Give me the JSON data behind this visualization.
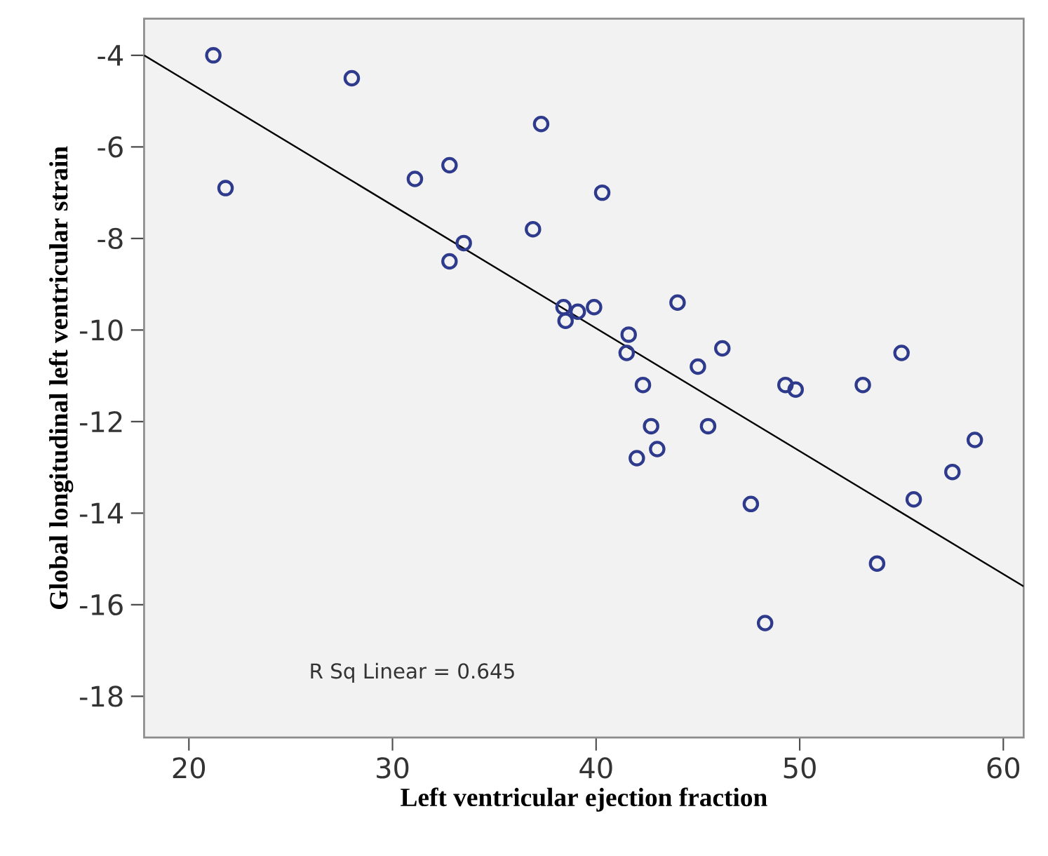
{
  "chart_data": {
    "type": "scatter",
    "xlabel": "Left ventricular ejection fraction",
    "ylabel": "Global longitudinal left ventricular strain",
    "xlim": [
      17.8,
      61
    ],
    "ylim": [
      -18.9,
      -3.2
    ],
    "xticks": [
      20,
      30,
      40,
      50,
      60
    ],
    "yticks": [
      -18,
      -16,
      -14,
      -12,
      -10,
      -8,
      -6,
      -4
    ],
    "annotations": [
      "R Sq Linear = 0.645"
    ],
    "series": [
      {
        "marker": "circle",
        "color": "#2e3a8c",
        "x": [
          21.2,
          21.8,
          28,
          31.1,
          32.8,
          32.8,
          33.5,
          36.9,
          37.3,
          38.4,
          38.5,
          39.1,
          39.9,
          40.3,
          41.6,
          41.5,
          42.3,
          42.0,
          42.7,
          43.0,
          44.0,
          45.0,
          45.5,
          46.2,
          47.6,
          48.3,
          49.3,
          49.8,
          53.1,
          53.8,
          55.0,
          55.6,
          57.5,
          58.6
        ],
        "values": [
          -4.0,
          -6.9,
          -4.5,
          -6.7,
          -6.4,
          -8.5,
          -8.1,
          -7.8,
          -5.5,
          -9.5,
          -9.8,
          -9.6,
          -9.5,
          -7.0,
          -10.1,
          -10.5,
          -11.2,
          -12.8,
          -12.1,
          -12.6,
          -9.4,
          -10.8,
          -12.1,
          -10.4,
          -13.8,
          -16.4,
          -11.2,
          -11.3,
          -11.2,
          -15.1,
          -10.5,
          -13.7,
          -13.1,
          -12.4
        ]
      },
      {
        "type": "line",
        "color": "#000000",
        "x": [
          17.8,
          61
        ],
        "values": [
          -4.0,
          -15.6
        ]
      }
    ]
  }
}
